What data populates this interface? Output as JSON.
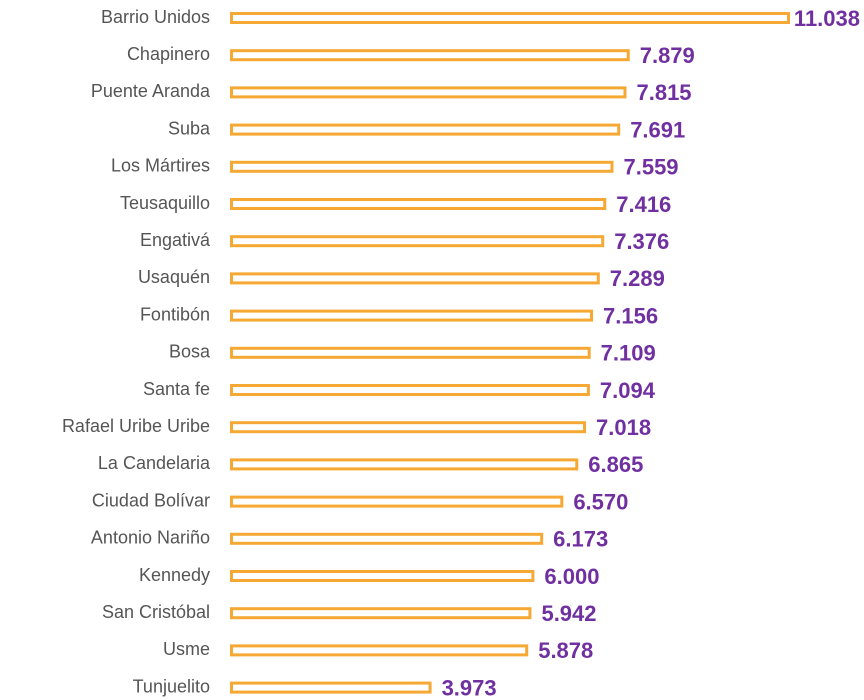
{
  "chart_data": {
    "type": "bar",
    "orientation": "horizontal",
    "categories": [
      "Barrio Unidos",
      "Chapinero",
      "Puente Aranda",
      "Suba",
      "Los Mártires",
      "Teusaquillo",
      "Engativá",
      "Usaquén",
      "Fontibón",
      "Bosa",
      "Santa fe",
      "Rafael Uribe Uribe",
      "La Candelaria",
      "Ciudad Bolívar",
      "Antonio Nariño",
      "Kennedy",
      "San Cristóbal",
      "Usme",
      "Tunjuelito"
    ],
    "values": [
      11038,
      7879,
      7815,
      7691,
      7559,
      7416,
      7376,
      7289,
      7156,
      7109,
      7094,
      7018,
      6865,
      6570,
      6173,
      6000,
      5942,
      5878,
      3973
    ],
    "value_labels": [
      "11.038",
      "7.879",
      "7.815",
      "7.691",
      "7.559",
      "7.416",
      "7.376",
      "7.289",
      "7.156",
      "7.109",
      "7.094",
      "7.018",
      "6.865",
      "6.570",
      "6.173",
      "6.000",
      "5.942",
      "5.878",
      "3.973"
    ],
    "color": "#f5a833",
    "label_color": "#7030a0"
  }
}
